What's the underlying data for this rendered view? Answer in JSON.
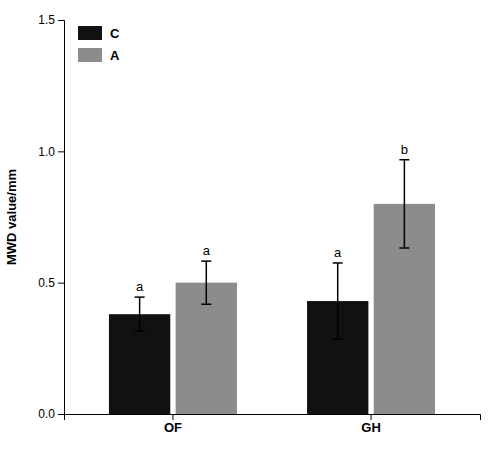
{
  "chart_data": {
    "type": "bar",
    "y_label": "MWD value/mm",
    "categories": [
      "OF",
      "GH"
    ],
    "series": [
      {
        "name": "C",
        "color": "#111111",
        "values": [
          0.38,
          0.43
        ],
        "errors": [
          0.065,
          0.145
        ],
        "letters": [
          "a",
          "a"
        ]
      },
      {
        "name": "A",
        "color": "#8c8c8c",
        "values": [
          0.5,
          0.8
        ],
        "errors": [
          0.082,
          0.168
        ],
        "letters": [
          "a",
          "b"
        ]
      }
    ],
    "ylim": [
      0.0,
      1.5
    ],
    "yticks": [
      {
        "value": 0,
        "label": "0.0"
      },
      0.5,
      {
        "value": 1,
        "label": "1.0"
      },
      1.5
    ],
    "grid": false,
    "legend": "upper left"
  }
}
